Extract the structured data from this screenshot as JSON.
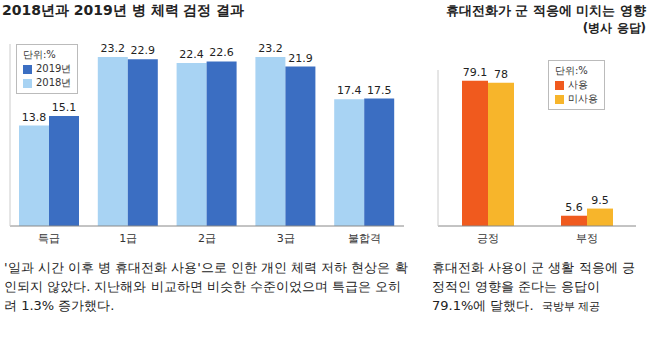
{
  "chart_data": [
    {
      "type": "bar",
      "title": "2018년과 2019년 병 체력 검정 결과",
      "ylabel": "단위:%",
      "categories": [
        "특급",
        "1급",
        "2급",
        "3급",
        "불합격"
      ],
      "series": [
        {
          "name": "2018년",
          "color": "#a8d3f3",
          "values": [
            13.8,
            23.2,
            22.4,
            23.2,
            17.4
          ]
        },
        {
          "name": "2019년",
          "color": "#3b6ec2",
          "values": [
            15.1,
            22.9,
            22.6,
            21.9,
            17.5
          ]
        }
      ],
      "ylim": [
        0,
        25
      ],
      "tick_labels": "x",
      "grid": false,
      "data_labels": true,
      "annotations": [
        "'일과 시간 이후 병 휴대전화 사용'으로 인한 개인 체력 저하 현상은 확인되지 않았다. 지난해와 비교하면 비슷한 수준이었으며 특급은 오히려 1.3% 증가했다."
      ]
    },
    {
      "type": "bar",
      "title": "휴대전화가 군 적응에 미치는 영향",
      "subtitle": "(병사 응답)",
      "ylabel": "단위:%",
      "categories": [
        "긍정",
        "부정"
      ],
      "series": [
        {
          "name": "사용",
          "color": "#f05a1e",
          "values": [
            79.1,
            5.6
          ]
        },
        {
          "name": "미사용",
          "color": "#f7b52b",
          "values": [
            78,
            9.5
          ]
        }
      ],
      "ylim": [
        0,
        85
      ],
      "tick_labels": "x",
      "grid": false,
      "data_labels": true,
      "annotations": [
        "휴대전화 사용이 군 생활 적응에 긍정적인 영향을 준다는 응답이 79.1%에 달했다.",
        "국방부 제공"
      ]
    }
  ]
}
